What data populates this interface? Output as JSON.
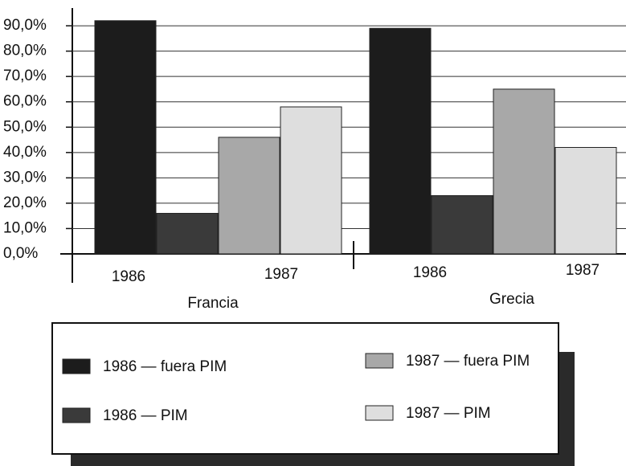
{
  "chart_data": {
    "type": "bar",
    "categories": [
      "Francia",
      "Grecia"
    ],
    "subcategories": [
      "1986",
      "1987"
    ],
    "series": [
      {
        "name": "1986 — fuera PIM",
        "color": "#1c1c1c",
        "values": [
          92,
          89
        ]
      },
      {
        "name": "1986 — PIM",
        "color": "#3a3a3a",
        "values": [
          16,
          23
        ]
      },
      {
        "name": "1987 — fuera PIM",
        "color": "#a8a8a8",
        "values": [
          46,
          65
        ]
      },
      {
        "name": "1987 — PIM",
        "color": "#dedede",
        "values": [
          58,
          42
        ]
      }
    ],
    "ylim": [
      0,
      97
    ],
    "yticks": [
      {
        "value": 0,
        "label": "0,0%"
      },
      {
        "value": 10,
        "label": "10,0%"
      },
      {
        "value": 20,
        "label": "20,0%"
      },
      {
        "value": 30,
        "label": "30,0%"
      },
      {
        "value": 40,
        "label": "40,0%"
      },
      {
        "value": 50,
        "label": "50,0%"
      },
      {
        "value": 60,
        "label": "60,0%"
      },
      {
        "value": 70,
        "label": "70,0%"
      },
      {
        "value": 80,
        "label": "80,0%"
      },
      {
        "value": 90,
        "label": "90,0%"
      }
    ],
    "grid": true
  }
}
